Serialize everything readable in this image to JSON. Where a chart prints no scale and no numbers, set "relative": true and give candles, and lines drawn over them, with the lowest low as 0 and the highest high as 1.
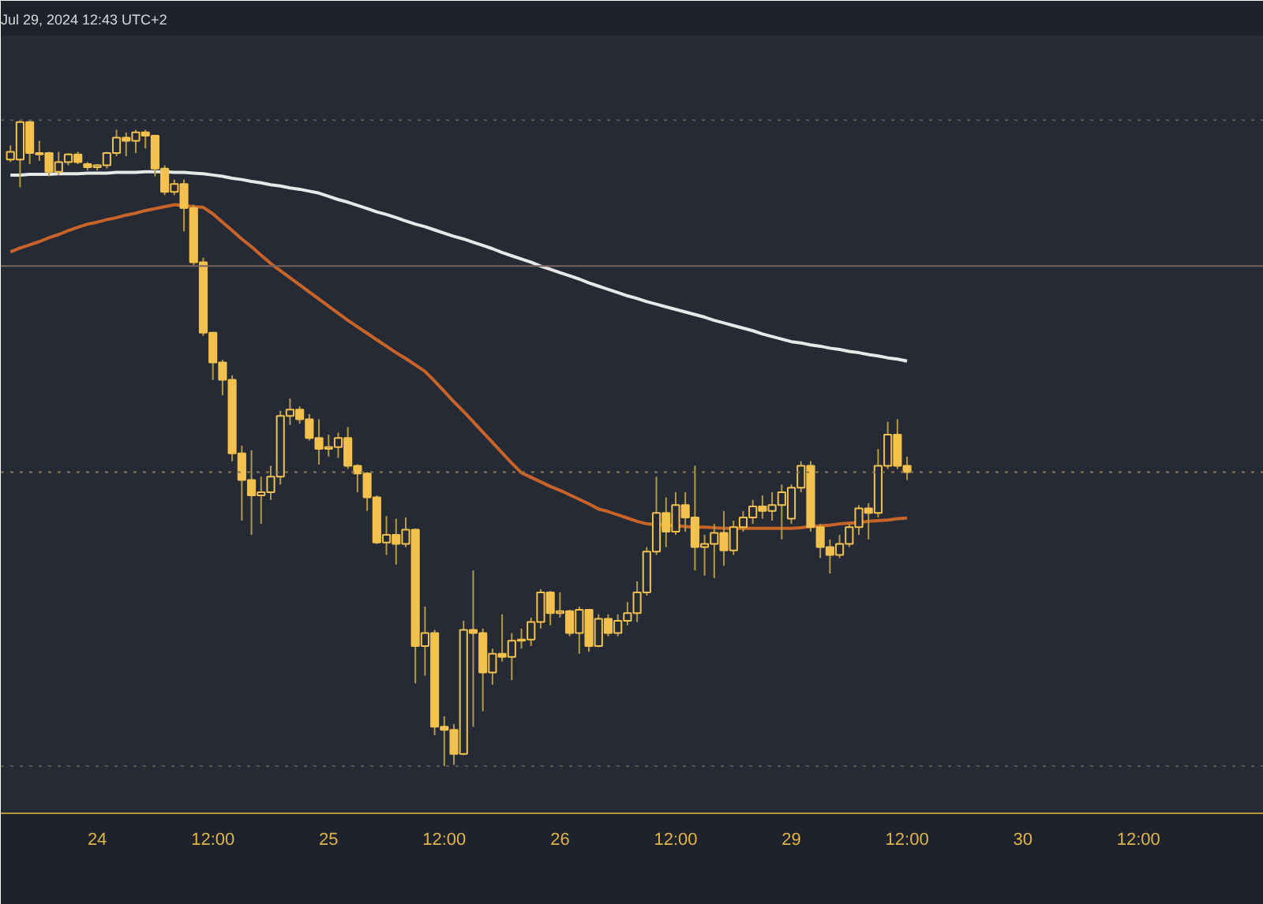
{
  "chart_data": {
    "type": "candlestick",
    "relative": true,
    "color": "#f2c14e",
    "grid": false,
    "tick_labels": "x",
    "annotations": [
      "Jul 29, 2024 12:43 UTC+2"
    ],
    "categories": [
      null,
      null,
      null,
      null,
      null,
      null,
      null,
      null,
      null,
      "24",
      null,
      null,
      null,
      null,
      null,
      null,
      null,
      null,
      null,
      null,
      null,
      "12:00",
      null,
      null,
      null,
      null,
      null,
      null,
      null,
      null,
      null,
      null,
      null,
      "25",
      null,
      null,
      null,
      null,
      null,
      null,
      null,
      null,
      null,
      null,
      null,
      "12:00",
      null,
      null,
      null,
      null,
      null,
      null,
      null,
      null,
      null,
      null,
      null,
      "26",
      null,
      null,
      null,
      null,
      null,
      null,
      null,
      null,
      null,
      null,
      null,
      "12:00",
      null,
      null,
      null,
      null,
      null,
      null,
      null,
      null,
      null,
      null,
      null,
      "29",
      null,
      null,
      null,
      null,
      null,
      null,
      null,
      null,
      null,
      null,
      null,
      "12:00",
      null,
      null,
      null,
      null,
      null,
      null,
      null,
      null,
      null,
      null,
      null,
      "30",
      null,
      null,
      null,
      null,
      null,
      null,
      null,
      null,
      null,
      null,
      null,
      "12:00",
      null,
      null,
      null,
      null,
      null,
      null,
      null,
      null,
      null,
      null,
      null,
      null
    ],
    "ohlc": [
      [
        0.939,
        0.961,
        0.935,
        0.951
      ],
      [
        0.939,
        1.0,
        0.896,
        0.997
      ],
      [
        0.997,
        1.0,
        0.932,
        0.949
      ],
      [
        0.949,
        0.968,
        0.937,
        0.947
      ],
      [
        0.949,
        0.951,
        0.913,
        0.92
      ],
      [
        0.92,
        0.951,
        0.915,
        0.935
      ],
      [
        0.935,
        0.949,
        0.93,
        0.947
      ],
      [
        0.947,
        0.951,
        0.932,
        0.935
      ],
      [
        0.932,
        0.935,
        0.922,
        0.927
      ],
      [
        0.927,
        0.932,
        0.922,
        0.93
      ],
      [
        0.93,
        0.951,
        0.925,
        0.949
      ],
      [
        0.949,
        0.985,
        0.944,
        0.973
      ],
      [
        0.973,
        0.981,
        0.944,
        0.968
      ],
      [
        0.968,
        0.985,
        0.949,
        0.981
      ],
      [
        0.981,
        0.985,
        0.956,
        0.976
      ],
      [
        0.976,
        0.976,
        0.913,
        0.925
      ],
      [
        0.925,
        0.93,
        0.884,
        0.889
      ],
      [
        0.889,
        0.908,
        0.884,
        0.901
      ],
      [
        0.901,
        0.908,
        0.828,
        0.864
      ],
      [
        0.864,
        0.869,
        0.775,
        0.78
      ],
      [
        0.78,
        0.787,
        0.666,
        0.671
      ],
      [
        0.671,
        0.671,
        0.598,
        0.625
      ],
      [
        0.625,
        0.629,
        0.574,
        0.598
      ],
      [
        0.598,
        0.605,
        0.472,
        0.484
      ],
      [
        0.484,
        0.496,
        0.38,
        0.443
      ],
      [
        0.443,
        0.489,
        0.358,
        0.419
      ],
      [
        0.419,
        0.448,
        0.375,
        0.424
      ],
      [
        0.424,
        0.465,
        0.412,
        0.448
      ],
      [
        0.448,
        0.55,
        0.436,
        0.542
      ],
      [
        0.542,
        0.569,
        0.528,
        0.552
      ],
      [
        0.552,
        0.557,
        0.53,
        0.537
      ],
      [
        0.537,
        0.545,
        0.504,
        0.508
      ],
      [
        0.508,
        0.537,
        0.467,
        0.491
      ],
      [
        0.491,
        0.513,
        0.479,
        0.494
      ],
      [
        0.494,
        0.516,
        0.477,
        0.508
      ],
      [
        0.508,
        0.525,
        0.46,
        0.465
      ],
      [
        0.465,
        0.467,
        0.424,
        0.453
      ],
      [
        0.453,
        0.455,
        0.395,
        0.416
      ],
      [
        0.416,
        0.419,
        0.344,
        0.346
      ],
      [
        0.346,
        0.387,
        0.327,
        0.358
      ],
      [
        0.358,
        0.383,
        0.312,
        0.344
      ],
      [
        0.344,
        0.385,
        0.339,
        0.366
      ],
      [
        0.366,
        0.368,
        0.128,
        0.186
      ],
      [
        0.186,
        0.247,
        0.14,
        0.206
      ],
      [
        0.206,
        0.211,
        0.048,
        0.061
      ],
      [
        0.061,
        0.077,
        0.0,
        0.056
      ],
      [
        0.056,
        0.065,
        0.002,
        0.019
      ],
      [
        0.019,
        0.225,
        0.017,
        0.211
      ],
      [
        0.211,
        0.303,
        0.061,
        0.206
      ],
      [
        0.206,
        0.213,
        0.085,
        0.145
      ],
      [
        0.145,
        0.182,
        0.126,
        0.174
      ],
      [
        0.174,
        0.235,
        0.162,
        0.169
      ],
      [
        0.169,
        0.206,
        0.133,
        0.194
      ],
      [
        0.194,
        0.213,
        0.182,
        0.196
      ],
      [
        0.196,
        0.23,
        0.186,
        0.223
      ],
      [
        0.223,
        0.274,
        0.213,
        0.269
      ],
      [
        0.269,
        0.271,
        0.218,
        0.237
      ],
      [
        0.237,
        0.269,
        0.23,
        0.24
      ],
      [
        0.24,
        0.242,
        0.201,
        0.206
      ],
      [
        0.206,
        0.247,
        0.174,
        0.242
      ],
      [
        0.242,
        0.242,
        0.177,
        0.186
      ],
      [
        0.186,
        0.235,
        0.184,
        0.228
      ],
      [
        0.228,
        0.235,
        0.201,
        0.206
      ],
      [
        0.206,
        0.235,
        0.201,
        0.225
      ],
      [
        0.225,
        0.254,
        0.218,
        0.237
      ],
      [
        0.237,
        0.286,
        0.223,
        0.269
      ],
      [
        0.269,
        0.339,
        0.264,
        0.332
      ],
      [
        0.332,
        0.448,
        0.327,
        0.392
      ],
      [
        0.392,
        0.416,
        0.339,
        0.363
      ],
      [
        0.363,
        0.424,
        0.358,
        0.404
      ],
      [
        0.404,
        0.424,
        0.363,
        0.385
      ],
      [
        0.385,
        0.465,
        0.303,
        0.339
      ],
      [
        0.339,
        0.358,
        0.295,
        0.344
      ],
      [
        0.344,
        0.375,
        0.291,
        0.361
      ],
      [
        0.361,
        0.395,
        0.31,
        0.334
      ],
      [
        0.334,
        0.38,
        0.327,
        0.37
      ],
      [
        0.37,
        0.395,
        0.363,
        0.385
      ],
      [
        0.385,
        0.412,
        0.375,
        0.402
      ],
      [
        0.402,
        0.419,
        0.383,
        0.395
      ],
      [
        0.395,
        0.424,
        0.38,
        0.404
      ],
      [
        0.404,
        0.436,
        0.351,
        0.424
      ],
      [
        0.383,
        0.436,
        0.375,
        0.431
      ],
      [
        0.431,
        0.472,
        0.424,
        0.465
      ],
      [
        0.465,
        0.472,
        0.363,
        0.37
      ],
      [
        0.37,
        0.375,
        0.322,
        0.339
      ],
      [
        0.339,
        0.351,
        0.298,
        0.327
      ],
      [
        0.327,
        0.358,
        0.322,
        0.344
      ],
      [
        0.344,
        0.375,
        0.339,
        0.37
      ],
      [
        0.37,
        0.404,
        0.358,
        0.399
      ],
      [
        0.399,
        0.407,
        0.351,
        0.392
      ],
      [
        0.392,
        0.491,
        0.385,
        0.465
      ],
      [
        0.465,
        0.533,
        0.46,
        0.513
      ],
      [
        0.513,
        0.537,
        0.46,
        0.465
      ],
      [
        0.465,
        0.479,
        0.443,
        0.455
      ],
      null,
      null,
      null,
      null,
      null,
      null,
      null,
      null,
      null,
      null,
      null,
      null,
      null,
      null,
      null,
      null,
      null,
      null,
      null,
      null,
      null,
      null,
      null,
      null,
      null,
      null,
      null,
      null,
      null,
      null,
      null,
      null,
      null,
      null,
      null,
      null
    ],
    "series": [
      {
        "type": "line",
        "color": "#e8e8e8",
        "values": [
          0.915,
          0.915,
          0.916,
          0.916,
          0.916,
          0.917,
          0.917,
          0.917,
          0.918,
          0.918,
          0.918,
          0.919,
          0.919,
          0.919,
          0.92,
          0.92,
          0.92,
          0.919,
          0.919,
          0.918,
          0.917,
          0.915,
          0.913,
          0.91,
          0.908,
          0.905,
          0.903,
          0.9,
          0.898,
          0.895,
          0.893,
          0.89,
          0.887,
          0.882,
          0.877,
          0.873,
          0.868,
          0.863,
          0.858,
          0.854,
          0.849,
          0.844,
          0.839,
          0.835,
          0.83,
          0.825,
          0.82,
          0.816,
          0.811,
          0.806,
          0.801,
          0.795,
          0.79,
          0.785,
          0.78,
          0.774,
          0.769,
          0.764,
          0.759,
          0.754,
          0.748,
          0.743,
          0.738,
          0.733,
          0.728,
          0.724,
          0.719,
          0.715,
          0.711,
          0.707,
          0.703,
          0.699,
          0.695,
          0.69,
          0.686,
          0.682,
          0.678,
          0.674,
          0.669,
          0.665,
          0.661,
          0.657,
          0.655,
          0.652,
          0.65,
          0.647,
          0.645,
          0.642,
          0.64,
          0.637,
          0.635,
          0.632,
          0.63,
          0.627,
          null,
          null,
          null,
          null,
          null,
          null,
          null,
          null,
          null,
          null,
          null,
          null,
          null,
          null,
          null,
          null,
          null,
          null,
          null,
          null,
          null,
          null,
          null,
          null,
          null,
          null,
          null,
          null,
          null,
          null,
          null,
          null,
          null,
          null,
          null,
          null
        ]
      },
      {
        "type": "line",
        "color": "#c8642a",
        "values": [
          0.796,
          0.802,
          0.807,
          0.812,
          0.818,
          0.823,
          0.829,
          0.834,
          0.839,
          0.842,
          0.846,
          0.849,
          0.853,
          0.856,
          0.86,
          0.863,
          0.866,
          0.869,
          0.868,
          0.866,
          0.865,
          0.855,
          0.842,
          0.829,
          0.816,
          0.804,
          0.791,
          0.778,
          0.767,
          0.756,
          0.745,
          0.734,
          0.723,
          0.712,
          0.701,
          0.69,
          0.68,
          0.67,
          0.66,
          0.65,
          0.64,
          0.631,
          0.621,
          0.611,
          0.596,
          0.58,
          0.564,
          0.549,
          0.533,
          0.517,
          0.501,
          0.485,
          0.469,
          0.454,
          0.447,
          0.44,
          0.433,
          0.427,
          0.42,
          0.413,
          0.406,
          0.398,
          0.394,
          0.389,
          0.384,
          0.379,
          0.375,
          0.374,
          0.373,
          0.372,
          0.371,
          0.37,
          0.37,
          0.369,
          0.368,
          0.368,
          0.368,
          0.368,
          0.368,
          0.368,
          0.368,
          0.368,
          0.369,
          0.371,
          0.372,
          0.373,
          0.375,
          0.376,
          0.377,
          0.379,
          0.38,
          0.381,
          0.383,
          0.384,
          null,
          null,
          null,
          null,
          null,
          null,
          null,
          null,
          null,
          null,
          null,
          null,
          null,
          null,
          null,
          null,
          null,
          null,
          null,
          null,
          null,
          null,
          null,
          null,
          null,
          null,
          null,
          null,
          null,
          null,
          null,
          null,
          null,
          null,
          null,
          null
        ]
      }
    ],
    "ref_lines": [
      {
        "axis": "y",
        "value": 1.0,
        "color": "#5c5a48",
        "line_style": "dotted"
      },
      {
        "axis": "y",
        "value": 0.774,
        "color": "#7a6460",
        "line_style": "solid"
      },
      {
        "axis": "y",
        "value": 0.455,
        "color": "#8a7a50",
        "line_style": "dotted"
      },
      {
        "axis": "y",
        "value": 0.0,
        "color": "#5c5a48",
        "line_style": "dotted"
      }
    ]
  }
}
